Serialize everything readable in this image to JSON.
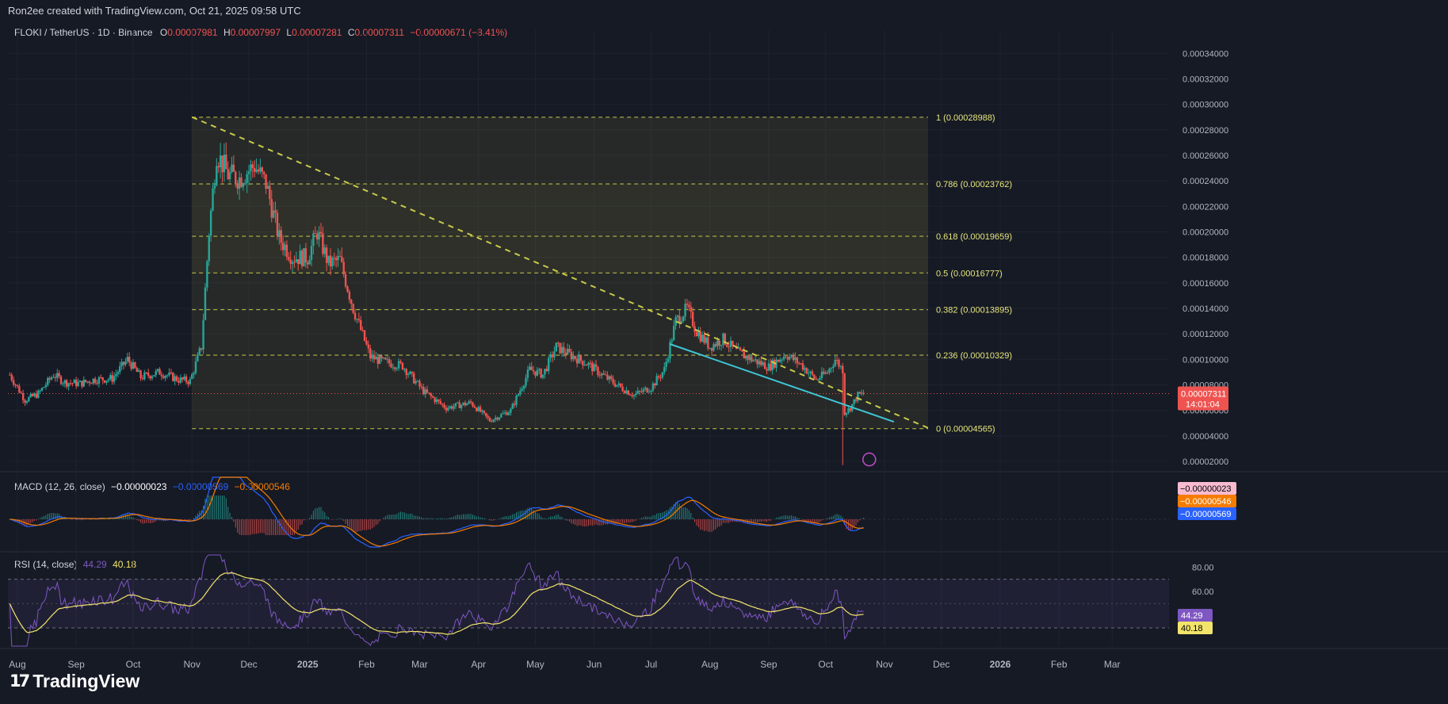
{
  "header": {
    "created_by": "Ron2ee created with TradingView.com, Oct 21, 2025 09:58 UTC",
    "symbol": "FLOKI / TetherUS · 1D · Binance",
    "ohlc": {
      "o_label": "O",
      "o": "0.00007981",
      "h_label": "H",
      "h": "0.00007997",
      "l_label": "L",
      "l": "0.00007281",
      "c_label": "C",
      "c": "0.00007311",
      "change": "−0.00000671 (−8.41%)"
    }
  },
  "brand": {
    "name": "TradingView",
    "icon": "tradingview-logo-icon"
  },
  "colors": {
    "bg": "#161a25",
    "up": "#26a69a",
    "down": "#ef5350",
    "fib": "#c9c94a",
    "trend_support": "#3fc5d6",
    "macd": "#2962ff",
    "signal": "#f57c00",
    "rsi": "#7e57c2",
    "rsi_ma": "#f2e46a"
  },
  "chart_data": [
    {
      "type": "candlestick",
      "title": "FLOKI / TetherUS · 1D · Binance",
      "x_ticks": [
        "Aug",
        "Sep",
        "Oct",
        "Nov",
        "Dec",
        "2025",
        "Feb",
        "Mar",
        "Apr",
        "May",
        "Jun",
        "Jul",
        "Aug",
        "Sep",
        "Oct",
        "Nov",
        "Dec",
        "2026",
        "Feb",
        "Mar"
      ],
      "y_ticks": [
        "0.00034000",
        "0.00032000",
        "0.00030000",
        "0.00028000",
        "0.00026000",
        "0.00024000",
        "0.00022000",
        "0.00020000",
        "0.00018000",
        "0.00016000",
        "0.00014000",
        "0.00012000",
        "0.00010000",
        "0.00008000",
        "0.00006000",
        "0.00004000",
        "0.00002000"
      ],
      "ylim": [
        1.5e-05,
        0.000352
      ],
      "last_price": {
        "value": 7.311e-05,
        "label": "0.00007311",
        "countdown": "14:01:04"
      },
      "price_path": [
        [
          "2024-07-28",
          8.8e-05
        ],
        [
          "2024-08-05",
          6.8e-05
        ],
        [
          "2024-08-12",
          7.3e-05
        ],
        [
          "2024-08-20",
          8.8e-05
        ],
        [
          "2024-08-26",
          8.2e-05
        ],
        [
          "2024-09-03",
          8.1e-05
        ],
        [
          "2024-09-10",
          8.4e-05
        ],
        [
          "2024-09-20",
          8.5e-05
        ],
        [
          "2024-09-28",
          0.0001
        ],
        [
          "2024-10-05",
          8.6e-05
        ],
        [
          "2024-10-15",
          9e-05
        ],
        [
          "2024-10-25",
          8.4e-05
        ],
        [
          "2024-10-31",
          8.3e-05
        ],
        [
          "2024-11-06",
          0.00011
        ],
        [
          "2024-11-10",
          0.0002
        ],
        [
          "2024-11-14",
          0.000262
        ],
        [
          "2024-11-20",
          0.000245
        ],
        [
          "2024-11-26",
          0.000242
        ],
        [
          "2024-12-04",
          0.000252
        ],
        [
          "2024-12-10",
          0.000238
        ],
        [
          "2024-12-17",
          0.000195
        ],
        [
          "2024-12-24",
          0.00018
        ],
        [
          "2025-01-01",
          0.00018
        ],
        [
          "2025-01-06",
          0.0002
        ],
        [
          "2025-01-12",
          0.000175
        ],
        [
          "2025-01-18",
          0.000178
        ],
        [
          "2025-01-25",
          0.00014
        ],
        [
          "2025-02-03",
          0.000102
        ],
        [
          "2025-02-10",
          9.8e-05
        ],
        [
          "2025-02-20",
          9.5e-05
        ],
        [
          "2025-03-03",
          7.5e-05
        ],
        [
          "2025-03-15",
          6.2e-05
        ],
        [
          "2025-03-28",
          6.6e-05
        ],
        [
          "2025-04-07",
          5.2e-05
        ],
        [
          "2025-04-18",
          6e-05
        ],
        [
          "2025-04-28",
          9.2e-05
        ],
        [
          "2025-05-05",
          8.8e-05
        ],
        [
          "2025-05-12",
          0.00011
        ],
        [
          "2025-05-20",
          0.000103
        ],
        [
          "2025-05-28",
          9.7e-05
        ],
        [
          "2025-06-05",
          8.8e-05
        ],
        [
          "2025-06-15",
          7.8e-05
        ],
        [
          "2025-06-22",
          7.2e-05
        ],
        [
          "2025-07-01",
          7.8e-05
        ],
        [
          "2025-07-08",
          9.2e-05
        ],
        [
          "2025-07-14",
          0.00013
        ],
        [
          "2025-07-20",
          0.00014
        ],
        [
          "2025-07-25",
          0.000122
        ],
        [
          "2025-08-01",
          0.00011
        ],
        [
          "2025-08-08",
          0.000116
        ],
        [
          "2025-08-15",
          0.000106
        ],
        [
          "2025-08-23",
          0.0001
        ],
        [
          "2025-09-01",
          9.4e-05
        ],
        [
          "2025-09-10",
          0.000104
        ],
        [
          "2025-09-18",
          9.6e-05
        ],
        [
          "2025-09-26",
          8.4e-05
        ],
        [
          "2025-10-02",
          9e-05
        ],
        [
          "2025-10-06",
          0.0001
        ],
        [
          "2025-10-10",
          9.2e-05
        ],
        [
          "2025-10-11",
          5.8e-05
        ],
        [
          "2025-10-14",
          6.2e-05
        ],
        [
          "2025-10-18",
          7.2e-05
        ],
        [
          "2025-10-21",
          7.3e-05
        ]
      ],
      "fib_levels": [
        {
          "ratio": "1",
          "value": 0.00028988,
          "label": "1 (0.00028988)"
        },
        {
          "ratio": "0.786",
          "value": 0.00023762,
          "label": "0.786 (0.00023762)"
        },
        {
          "ratio": "0.618",
          "value": 0.00019659,
          "label": "0.618 (0.00019659)"
        },
        {
          "ratio": "0.5",
          "value": 0.00016777,
          "label": "0.5 (0.00016777)"
        },
        {
          "ratio": "0.382",
          "value": 0.00013895,
          "label": "0.382 (0.00013895)"
        },
        {
          "ratio": "0.236",
          "value": 0.00010329,
          "label": "0.236 (0.00010329)"
        },
        {
          "ratio": "0",
          "value": 4.565e-05,
          "label": "0 (0.00004565)"
        }
      ],
      "fib_range": {
        "start": "2024-11-01",
        "end": "2025-11-24"
      },
      "trendlines": [
        {
          "name": "descending resistance",
          "style": "dashed",
          "color": "#c9c94a",
          "from": [
            "2024-11-01",
            0.00029
          ],
          "to": [
            "2025-11-26",
            4.5e-05
          ]
        },
        {
          "name": "support",
          "style": "solid",
          "color": "#3fc5d6",
          "from": [
            "2025-07-11",
            0.000112
          ],
          "to": [
            "2025-11-06",
            5.1e-05
          ]
        }
      ]
    },
    {
      "type": "line",
      "title": "MACD (12, 26, close)",
      "values_text": [
        "−0.00000023",
        "−0.00000569",
        "−0.00000546"
      ],
      "labels": [
        {
          "text": "−0.00000023",
          "color": "#f8bbd0",
          "text_color": "#000000"
        },
        {
          "text": "−0.00000546",
          "color": "#f57c00",
          "text_color": "#ffffff"
        },
        {
          "text": "−0.00000569",
          "color": "#2962ff",
          "text_color": "#ffffff"
        }
      ]
    },
    {
      "type": "line",
      "title": "RSI (14, close)",
      "values_text": [
        "44.29",
        "40.18"
      ],
      "y_ticks": [
        "80.00",
        "60.00"
      ],
      "ylim": [
        15,
        90
      ],
      "bands": [
        70,
        30
      ],
      "labels": [
        {
          "text": "44.29",
          "color": "#7e57c2",
          "text_color": "#ffffff"
        },
        {
          "text": "40.18",
          "color": "#f2e46a",
          "text_color": "#000000"
        }
      ]
    }
  ]
}
